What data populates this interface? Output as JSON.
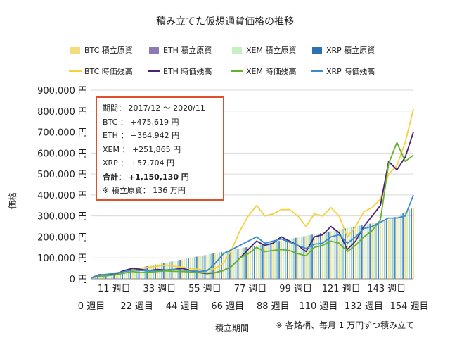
{
  "chart_data": {
    "type": "bar+line",
    "title": "積み立てた仮想通貨価格の推移",
    "xlabel": "積立期間",
    "ylabel": "価格",
    "ylim": [
      0,
      900000
    ],
    "yticks": [
      {
        "value": 0,
        "label": "0 円"
      },
      {
        "value": 100000,
        "label": "100,000 円"
      },
      {
        "value": 200000,
        "label": "200,000 円"
      },
      {
        "value": 300000,
        "label": "300,000 円"
      },
      {
        "value": 400000,
        "label": "400,000 円"
      },
      {
        "value": 500000,
        "label": "500,000 円"
      },
      {
        "value": 600000,
        "label": "600,000 円"
      },
      {
        "value": 700000,
        "label": "700,000 円"
      },
      {
        "value": 800000,
        "label": "800,000 円"
      },
      {
        "value": 900000,
        "label": "900,000 円"
      }
    ],
    "xlim": [
      0,
      156
    ],
    "xticks_upper": [
      {
        "value": 11,
        "label": "11 週目"
      },
      {
        "value": 33,
        "label": "33 週目"
      },
      {
        "value": 55,
        "label": "55 週目"
      },
      {
        "value": 77,
        "label": "77 週目"
      },
      {
        "value": 99,
        "label": "99 週目"
      },
      {
        "value": 121,
        "label": "121 週目"
      },
      {
        "value": 143,
        "label": "143 週目"
      }
    ],
    "xticks_lower": [
      {
        "value": 0,
        "label": "0 週目"
      },
      {
        "value": 22,
        "label": "22 週目"
      },
      {
        "value": 44,
        "label": "44 週目"
      },
      {
        "value": 66,
        "label": "66 週目"
      },
      {
        "value": 88,
        "label": "88 週目"
      },
      {
        "value": 110,
        "label": "110 週目"
      },
      {
        "value": 132,
        "label": "132 週目"
      },
      {
        "value": 154,
        "label": "154 週目"
      }
    ],
    "legend": [
      {
        "name": "BTC 積立原資",
        "kind": "bar",
        "color": "#f5dc7a"
      },
      {
        "name": "ETH 積立原資",
        "kind": "bar",
        "color": "#8d7bb1"
      },
      {
        "name": "XEM 積立原資",
        "kind": "bar",
        "color": "#c6f0c2"
      },
      {
        "name": "XRP 積立原資",
        "kind": "bar",
        "color": "#2b73b3"
      },
      {
        "name": "BTC 時価残高",
        "kind": "line",
        "color": "#f3d23c"
      },
      {
        "name": "ETH 時価残高",
        "kind": "line",
        "color": "#4b2275"
      },
      {
        "name": "XEM 時価残高",
        "kind": "line",
        "color": "#65b22f"
      },
      {
        "name": "XRP 時価残高",
        "kind": "line",
        "color": "#3a8ccf"
      }
    ],
    "principal_bars": {
      "note": "各銘柄の積立原資（週ごと、月1万円ずつ積立）",
      "x": [
        0,
        4,
        8,
        12,
        16,
        20,
        24,
        28,
        32,
        36,
        40,
        44,
        48,
        52,
        56,
        60,
        64,
        68,
        72,
        76,
        80,
        84,
        88,
        92,
        96,
        100,
        104,
        108,
        112,
        116,
        120,
        124,
        128,
        132,
        136,
        140,
        144,
        148,
        152,
        156
      ],
      "values": [
        10000,
        17500,
        25000,
        32500,
        40000,
        47500,
        55000,
        62500,
        70000,
        77500,
        85000,
        92500,
        100000,
        107500,
        115000,
        122500,
        130000,
        137500,
        145000,
        152500,
        160000,
        167500,
        175000,
        182500,
        190000,
        197500,
        205000,
        212500,
        220000,
        227500,
        235000,
        242500,
        250000,
        257500,
        265000,
        272500,
        280000,
        300000,
        320000,
        340000
      ]
    },
    "series": [
      {
        "name": "BTC 時価残高",
        "color": "#f3d23c",
        "x": [
          0,
          4,
          8,
          12,
          16,
          20,
          24,
          28,
          32,
          36,
          40,
          44,
          48,
          52,
          56,
          60,
          64,
          68,
          72,
          76,
          80,
          84,
          88,
          92,
          96,
          100,
          104,
          108,
          112,
          116,
          120,
          124,
          128,
          132,
          136,
          140,
          144,
          148,
          152,
          156
        ],
        "values": [
          5000,
          15000,
          20000,
          25000,
          35000,
          45000,
          50000,
          55000,
          60000,
          65000,
          60000,
          55000,
          50000,
          45000,
          40000,
          50000,
          75000,
          140000,
          230000,
          300000,
          350000,
          300000,
          310000,
          330000,
          330000,
          300000,
          250000,
          310000,
          300000,
          340000,
          300000,
          200000,
          250000,
          320000,
          340000,
          380000,
          500000,
          540000,
          650000,
          810000
        ]
      },
      {
        "name": "ETH 時価残高",
        "color": "#4b2275",
        "x": [
          0,
          4,
          8,
          12,
          16,
          20,
          24,
          28,
          32,
          36,
          40,
          44,
          48,
          52,
          56,
          60,
          64,
          68,
          72,
          76,
          80,
          84,
          88,
          92,
          96,
          100,
          104,
          108,
          112,
          116,
          120,
          124,
          128,
          132,
          136,
          140,
          144,
          148,
          152,
          156
        ],
        "values": [
          5000,
          20000,
          18000,
          25000,
          40000,
          50000,
          45000,
          40000,
          45000,
          42000,
          45000,
          50000,
          40000,
          30000,
          25000,
          30000,
          40000,
          60000,
          100000,
          140000,
          180000,
          160000,
          170000,
          200000,
          180000,
          160000,
          130000,
          200000,
          210000,
          250000,
          220000,
          140000,
          180000,
          250000,
          300000,
          350000,
          560000,
          520000,
          580000,
          700000
        ]
      },
      {
        "name": "XEM 時価残高",
        "color": "#65b22f",
        "x": [
          0,
          4,
          8,
          12,
          16,
          20,
          24,
          28,
          32,
          36,
          40,
          44,
          48,
          52,
          56,
          60,
          64,
          68,
          72,
          76,
          80,
          84,
          88,
          92,
          96,
          100,
          104,
          108,
          112,
          116,
          120,
          124,
          128,
          132,
          136,
          140,
          144,
          148,
          152,
          156
        ],
        "values": [
          5000,
          12000,
          15000,
          20000,
          28000,
          35000,
          30000,
          32000,
          35000,
          38000,
          36000,
          35000,
          33000,
          30000,
          28000,
          30000,
          40000,
          60000,
          100000,
          120000,
          150000,
          130000,
          135000,
          140000,
          135000,
          120000,
          110000,
          150000,
          160000,
          180000,
          170000,
          130000,
          160000,
          200000,
          230000,
          280000,
          550000,
          650000,
          560000,
          590000
        ]
      },
      {
        "name": "XRP 時価残高",
        "color": "#3a8ccf",
        "x": [
          0,
          4,
          8,
          12,
          16,
          20,
          24,
          28,
          32,
          36,
          40,
          44,
          48,
          52,
          56,
          60,
          64,
          68,
          72,
          76,
          80,
          84,
          88,
          92,
          96,
          100,
          104,
          108,
          112,
          116,
          120,
          124,
          128,
          132,
          136,
          140,
          144,
          148,
          152,
          156
        ],
        "values": [
          5000,
          18000,
          22000,
          28000,
          35000,
          42000,
          40000,
          38000,
          40000,
          42000,
          45000,
          42000,
          40000,
          35000,
          38000,
          75000,
          120000,
          140000,
          160000,
          180000,
          200000,
          170000,
          180000,
          190000,
          175000,
          160000,
          145000,
          165000,
          170000,
          200000,
          210000,
          170000,
          200000,
          240000,
          250000,
          270000,
          290000,
          290000,
          300000,
          400000
        ]
      }
    ],
    "summary": {
      "period": "期間： 2017/12 ～ 2020/11",
      "btc": "BTC ： +475,619 円",
      "eth": "ETH ： +364,942 円",
      "xem": "XEM ： +251,865 円",
      "xrp": "XRP ： +57,704 円",
      "total": "合計： +1,150,130 円",
      "principal": "※ 積立原資： 136 万円"
    },
    "footnote": "※ 各銘柄、毎月 1 万円ずつ積み立て"
  }
}
